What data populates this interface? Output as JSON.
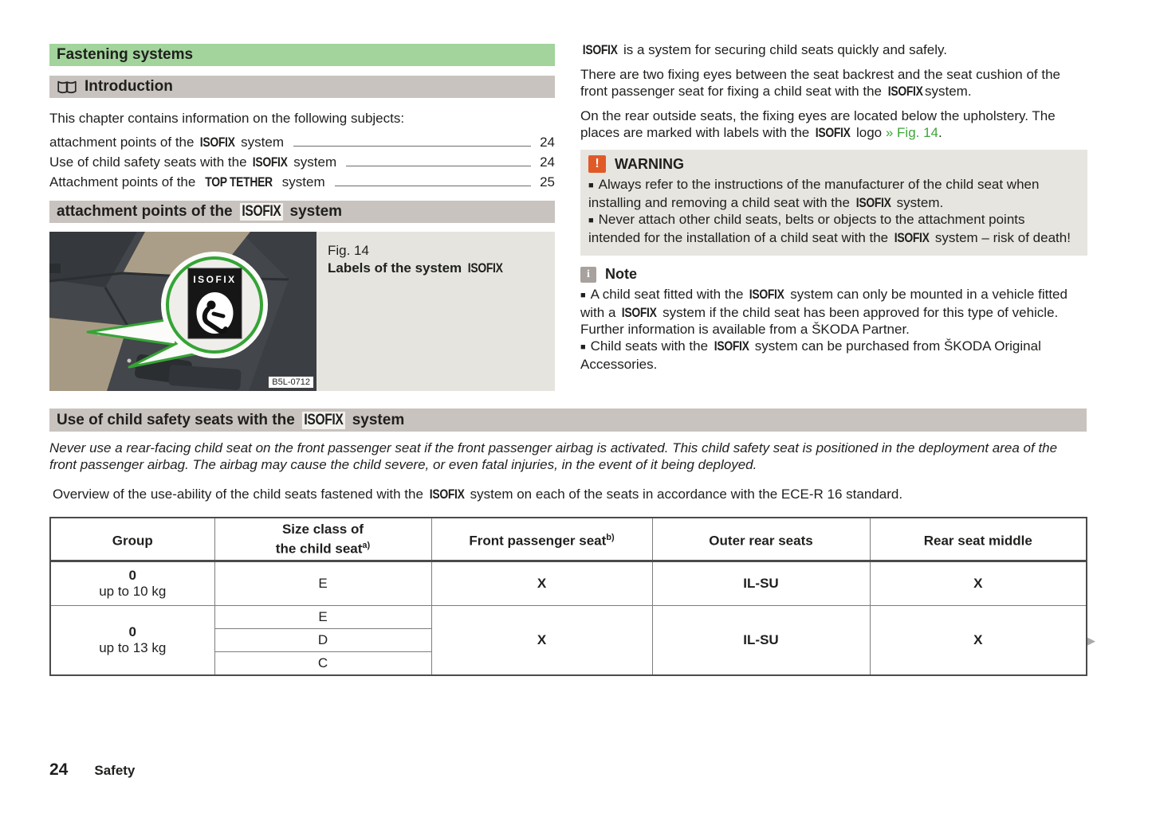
{
  "colors": {
    "header_green": "#a2d49c",
    "header_gray": "#c8c3bf",
    "box_gray": "#e6e5e0",
    "caption_gray": "#e5e4df",
    "warning_orange": "#e05a28",
    "note_gray": "#a7a29d",
    "link_green": "#3fa43a",
    "callout_green": "#35a435"
  },
  "left_column": {
    "section_title": "Fastening systems",
    "introduction_title": "Introduction",
    "chapter_line": "This chapter contains information on the following subjects:",
    "toc": [
      {
        "label": "attachment points of the ISOFIX system",
        "page": "24"
      },
      {
        "label": "Use of child safety seats with the ISOFIX system",
        "page": "24"
      },
      {
        "label": "Attachment points of the TOP TETHER system",
        "page": "25"
      }
    ],
    "attachment_header": "attachment points of the ISOFIX system",
    "figure": {
      "photo_label": "ISOFIX",
      "photo_code": "B5L-0712",
      "caption_line1": "Fig. 14",
      "caption_line2": "Labels of the system ISOFIX"
    }
  },
  "right_column": {
    "p1": "ISOFIX is a system for securing child seats quickly and safely.",
    "p2": "There are two fixing eyes between the seat backrest and the seat cushion of the front passenger seat for fixing a child seat with the ISOFIXsystem.",
    "p3_pre": "On the rear outside seats, the fixing eyes are located below the upholstery. The places are marked with labels with the ISOFIX logo ",
    "p3_link": "» Fig. 14",
    "p3_post": ".",
    "warning": {
      "icon": "!",
      "title": "WARNING",
      "items": [
        "Always refer to the instructions of the manufacturer of the child seat when installing and removing a child seat with the ISOFIX system.",
        "Never attach other child seats, belts or objects to the attachment points intended for the installation of a child seat with the ISOFIX system – risk of death!"
      ]
    },
    "note": {
      "icon": "i",
      "title": "Note",
      "items": [
        "A child seat fitted with the ISOFIX system can only be mounted in a vehicle fitted with a ISOFIX system if the child seat has been approved for this type of vehicle. Further information is available from a ŠKODA Partner.",
        "Child seats with the ISOFIX system can be purchased from ŠKODA Original Accessories."
      ]
    }
  },
  "bottom": {
    "use_header": "Use of child safety seats with the ISOFIX system",
    "airbag_warning": "Never use a rear-facing child seat on the front passenger seat if the front passenger airbag is activated. This child safety seat is positioned in the deployment area of the front passenger airbag. The airbag may cause the child severe, or even fatal injuries, in the event of it being deployed.",
    "overview": "Overview of the use-ability of the child seats fastened with the ISOFIX system on each of the seats in accordance with the ECE-R 16 standard.",
    "table": {
      "headers": [
        {
          "text": "Group"
        },
        {
          "text": "Size class of\nthe child seat",
          "sup": "a)"
        },
        {
          "text": "Front passenger seat",
          "sup": "b)"
        },
        {
          "text": "Outer rear seats"
        },
        {
          "text": "Rear seat middle"
        }
      ],
      "rows": [
        {
          "group_line1": "0",
          "group_line2": "up to 10 kg",
          "size_classes": [
            "E"
          ],
          "front_passenger": "X",
          "outer_rear": "IL-SU",
          "rear_middle": "X"
        },
        {
          "group_line1": "0",
          "group_line2": "up to 13 kg",
          "size_classes": [
            "E",
            "D",
            "C"
          ],
          "front_passenger": "X",
          "outer_rear": "IL-SU",
          "rear_middle": "X"
        }
      ],
      "continues_icon": "▶"
    }
  },
  "footer": {
    "page_number": "24",
    "chapter": "Safety"
  }
}
